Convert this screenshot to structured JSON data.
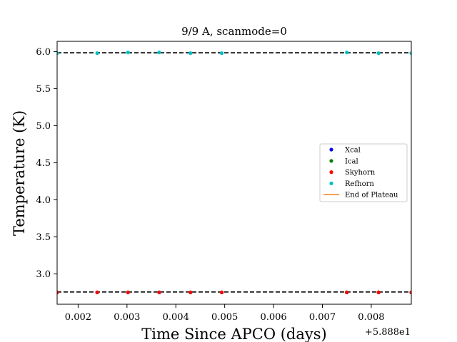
{
  "chart_data": {
    "type": "scatter",
    "title": "9/9 A, scanmode=0",
    "xlabel": "Time Since APCO (days)",
    "ylabel": "Temperature (K)",
    "x_offset_label": "+5.888e1",
    "xlim": [
      0.00157,
      0.00882
    ],
    "ylim": [
      2.59,
      6.14
    ],
    "xticks": [
      0.002,
      0.003,
      0.004,
      0.005,
      0.006,
      0.007,
      0.008
    ],
    "xtick_labels": [
      "0.002",
      "0.003",
      "0.004",
      "0.005",
      "0.006",
      "0.007",
      "0.008"
    ],
    "yticks": [
      3.0,
      3.5,
      4.0,
      4.5,
      5.0,
      5.5,
      6.0
    ],
    "ytick_labels": [
      "3.0",
      "3.5",
      "4.0",
      "4.5",
      "5.0",
      "5.5",
      "6.0"
    ],
    "grid": false,
    "legend_position": "center-right",
    "x": [
      0.00157,
      0.00239,
      0.00302,
      0.00366,
      0.0043,
      0.00494,
      0.0075,
      0.00815,
      0.00882
    ],
    "series": [
      {
        "name": "Xcal",
        "color": "#0000ff",
        "marker": "dot",
        "values": [
          2.75,
          2.75,
          2.75,
          2.75,
          2.75,
          2.75,
          2.75,
          2.75,
          2.75
        ]
      },
      {
        "name": "Ical",
        "color": "#008000",
        "marker": "dot",
        "values": [
          2.75,
          2.75,
          2.75,
          2.75,
          2.75,
          2.75,
          2.75,
          2.75,
          2.75
        ]
      },
      {
        "name": "Skyhorn",
        "color": "#ff0000",
        "marker": "dot",
        "values": [
          2.75,
          2.75,
          2.75,
          2.75,
          2.75,
          2.75,
          2.75,
          2.75,
          2.75
        ]
      },
      {
        "name": "Refhorn",
        "color": "#00bfbf",
        "marker": "dot",
        "values": [
          5.98,
          5.98,
          5.99,
          5.99,
          5.98,
          5.98,
          5.99,
          5.98,
          5.98
        ]
      },
      {
        "name": "End of Plateau",
        "color": "#ff7f0e",
        "marker": "line",
        "values": []
      }
    ],
    "reference_lines": [
      {
        "y": 5.985,
        "color": "#000000",
        "style": "dashed"
      },
      {
        "y": 2.755,
        "color": "#000000",
        "style": "dashed"
      }
    ]
  }
}
